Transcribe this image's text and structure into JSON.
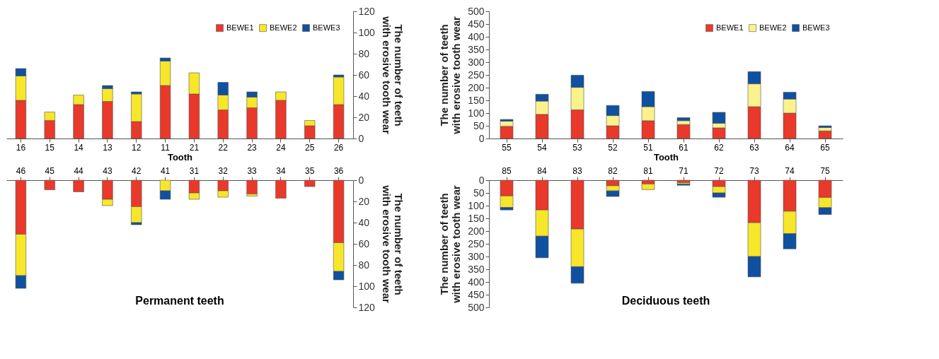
{
  "chart_data": [
    {
      "type": "bar",
      "stacked": true,
      "xlabel": "Tooth",
      "ylabel": "The number of teeth\nwith erosive tooth wear",
      "categories": [
        "16",
        "15",
        "14",
        "13",
        "12",
        "11",
        "21",
        "22",
        "23",
        "24",
        "25",
        "26"
      ],
      "ylim": [
        0,
        120
      ],
      "yticks": [
        0,
        20,
        40,
        60,
        80,
        100,
        120
      ],
      "legend": "top right",
      "series": [
        {
          "name": "BEWE1",
          "color": "#e8392b",
          "values": [
            36,
            17,
            32,
            35,
            16,
            50,
            42,
            27,
            29,
            36,
            12,
            32
          ]
        },
        {
          "name": "BEWE2",
          "color": "#f7e62a",
          "values": [
            23,
            8,
            9,
            12,
            26,
            23,
            20,
            14,
            10,
            8,
            5,
            26
          ]
        },
        {
          "name": "BEWE3",
          "color": "#1050a0",
          "values": [
            7,
            0,
            0,
            3,
            2,
            3,
            0,
            12,
            5,
            0,
            0,
            2
          ]
        }
      ]
    },
    {
      "type": "bar",
      "stacked": true,
      "title": "Permanent teeth",
      "ylabel": "The number of teeth\nwith erosive tooth wear",
      "categories": [
        "46",
        "45",
        "44",
        "43",
        "42",
        "41",
        "31",
        "32",
        "33",
        "34",
        "35",
        "36"
      ],
      "ylim": [
        120,
        0
      ],
      "yticks": [
        0,
        20,
        40,
        60,
        80,
        100,
        120
      ],
      "series": [
        {
          "color": "#e8392b",
          "values": [
            51,
            9,
            11,
            18,
            25,
            0,
            12,
            10,
            13,
            17,
            6,
            59
          ]
        },
        {
          "color": "#f7e62a",
          "values": [
            39,
            0,
            0,
            6,
            15,
            10,
            6,
            6,
            2,
            0,
            0,
            27
          ]
        },
        {
          "color": "#1050a0",
          "values": [
            12,
            0,
            0,
            0,
            2,
            8,
            0,
            0,
            0,
            0,
            0,
            8
          ]
        }
      ]
    },
    {
      "type": "bar",
      "stacked": true,
      "xlabel": "Tooth",
      "ylabel": "The number of teeth\nwith erosive tooth wear",
      "categories": [
        "55",
        "54",
        "53",
        "52",
        "51",
        "61",
        "62",
        "63",
        "64",
        "65"
      ],
      "ylim": [
        0,
        500
      ],
      "yticks": [
        0,
        50,
        100,
        150,
        200,
        250,
        300,
        350,
        400,
        450,
        500
      ],
      "legend": "top right",
      "series": [
        {
          "name": "BEWE1",
          "color": "#e8392b",
          "values": [
            48,
            95,
            113,
            50,
            70,
            55,
            42,
            125,
            100,
            30
          ]
        },
        {
          "name": "BEWE2",
          "color": "#fbf28c",
          "values": [
            20,
            52,
            88,
            40,
            55,
            15,
            18,
            90,
            55,
            13
          ]
        },
        {
          "name": "BEWE3",
          "color": "#1050a0",
          "values": [
            7,
            27,
            48,
            40,
            60,
            12,
            43,
            48,
            27,
            7
          ]
        }
      ]
    },
    {
      "type": "bar",
      "stacked": true,
      "title": "Deciduous teeth",
      "ylabel": "The number of teeth\nwith erosive tooth wear",
      "categories": [
        "85",
        "84",
        "83",
        "82",
        "81",
        "71",
        "72",
        "73",
        "74",
        "75"
      ],
      "ylim": [
        500,
        0
      ],
      "yticks": [
        0,
        50,
        100,
        150,
        200,
        250,
        300,
        350,
        400,
        450,
        500
      ],
      "series": [
        {
          "color": "#e8392b",
          "values": [
            62,
            117,
            192,
            22,
            15,
            10,
            25,
            167,
            122,
            68
          ]
        },
        {
          "color": "#f7e62a",
          "values": [
            45,
            103,
            148,
            20,
            22,
            5,
            25,
            133,
            88,
            40
          ]
        },
        {
          "color": "#1050a0",
          "values": [
            10,
            85,
            65,
            22,
            0,
            5,
            17,
            80,
            60,
            27
          ]
        }
      ]
    }
  ]
}
